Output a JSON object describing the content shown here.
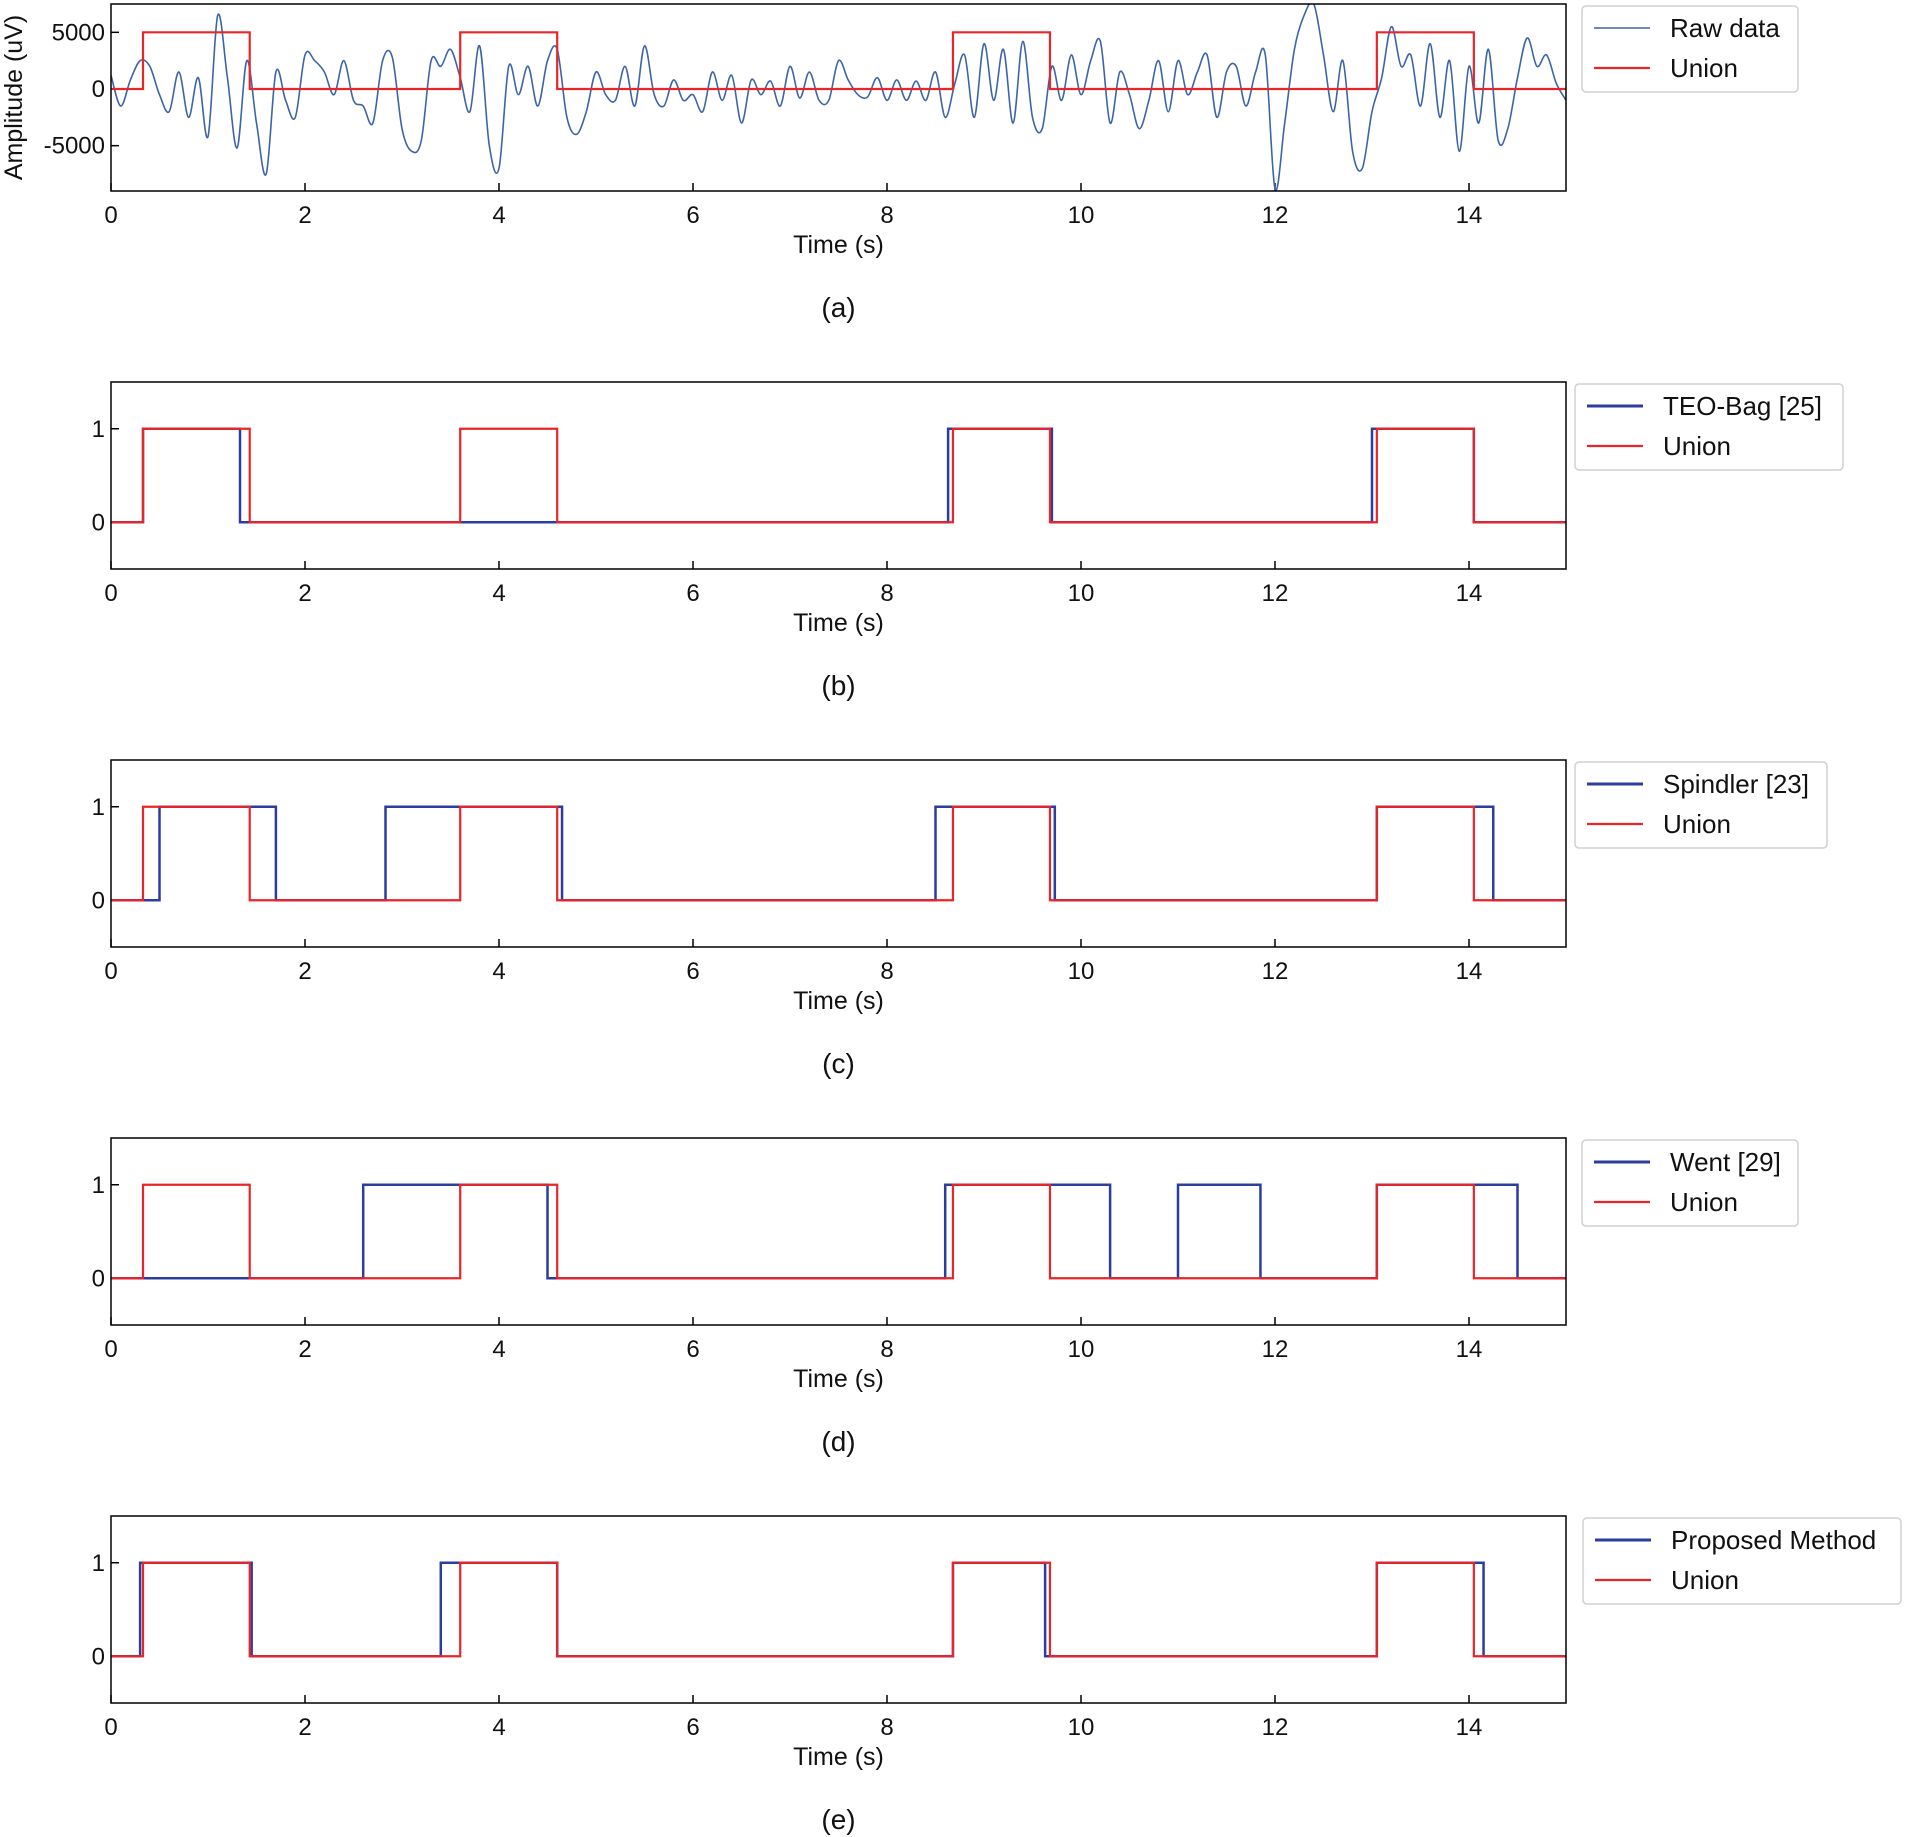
{
  "colors": {
    "raw": "#3b65a6",
    "detector": "#2b3d9e",
    "union": "#e8262a"
  },
  "chart_data": [
    {
      "type": "line",
      "caption": "(a)",
      "xlabel": "Time (s)",
      "ylabel": "Amplitude (uV)",
      "xlim": [
        0,
        15
      ],
      "ylim": [
        -9000,
        7500
      ],
      "xticks": [
        0,
        2,
        4,
        6,
        8,
        10,
        12,
        14
      ],
      "yticks": [
        5000,
        0,
        -5000
      ],
      "grid": false,
      "legend_placement": "outside-right",
      "raw_series": {
        "name": "Raw data",
        "x_start": 0,
        "x_step": 0.1,
        "values": [
          1200,
          -1500,
          800,
          2500,
          2000,
          -500,
          -2000,
          1500,
          -2500,
          1000,
          -4200,
          6500,
          1000,
          -5200,
          2500,
          -3000,
          -7500,
          1500,
          -1000,
          -2500,
          3000,
          2500,
          1500,
          -500,
          2500,
          -1000,
          -1500,
          -3000,
          2500,
          2800,
          -3500,
          -5500,
          -4500,
          2500,
          2000,
          3500,
          1000,
          -2000,
          3800,
          -5000,
          -7000,
          2000,
          -500,
          2000,
          -1500,
          2500,
          3500,
          -2500,
          -4000,
          -2000,
          1500,
          -500,
          -1000,
          2000,
          -1500,
          3800,
          -500,
          -1500,
          800,
          -1000,
          -500,
          -2000,
          1500,
          -1000,
          1200,
          -3000,
          800,
          -500,
          700,
          -1500,
          2000,
          -800,
          1500,
          -1000,
          -1000,
          2500,
          800,
          -500,
          -700,
          1000,
          -1000,
          800,
          -1000,
          700,
          -1000,
          1500,
          -2500,
          500,
          3000,
          -2500,
          4000,
          -1000,
          3500,
          -3000,
          4200,
          -2500,
          -3500,
          2000,
          -1000,
          3000,
          -500,
          2500,
          4200,
          -3000,
          1500,
          -500,
          -3500,
          -1000,
          2500,
          -2000,
          2500,
          -500,
          1500,
          3000,
          -2500,
          1500,
          2000,
          -1500,
          1500,
          3000,
          -8800,
          -3000,
          3500,
          6500,
          7500,
          3000,
          -2000,
          2500,
          -5500,
          -7000,
          -2000,
          1000,
          5500,
          2000,
          3000,
          -1500,
          4000,
          -2500,
          2500,
          -5500,
          2000,
          -3000,
          3500,
          -4500,
          -3500,
          1000,
          4500,
          2000,
          3000,
          500,
          -1000
        ]
      },
      "union_series": {
        "name": "Union",
        "high": 5000,
        "intervals": [
          [
            0.33,
            1.43
          ],
          [
            3.6,
            4.6
          ],
          [
            8.68,
            9.68
          ],
          [
            13.05,
            14.05
          ]
        ]
      }
    },
    {
      "type": "line",
      "caption": "(b)",
      "xlabel": "Time (s)",
      "xlim": [
        0,
        15
      ],
      "ylim": [
        -0.5,
        1.5
      ],
      "xticks": [
        0,
        2,
        4,
        6,
        8,
        10,
        12,
        14
      ],
      "yticks": [
        1,
        0
      ],
      "grid": false,
      "legend_placement": "outside-right",
      "detector_series": {
        "name": "TEO-Bag [25]",
        "intervals": [
          [
            0.33,
            1.33
          ],
          [
            8.63,
            9.7
          ],
          [
            13.0,
            14.05
          ]
        ]
      },
      "union_series": {
        "name": "Union",
        "intervals": [
          [
            0.33,
            1.43
          ],
          [
            3.6,
            4.6
          ],
          [
            8.68,
            9.68
          ],
          [
            13.05,
            14.05
          ]
        ]
      }
    },
    {
      "type": "line",
      "caption": "(c)",
      "xlabel": "Time (s)",
      "xlim": [
        0,
        15
      ],
      "ylim": [
        -0.5,
        1.5
      ],
      "xticks": [
        0,
        2,
        4,
        6,
        8,
        10,
        12,
        14
      ],
      "yticks": [
        1,
        0
      ],
      "grid": false,
      "legend_placement": "outside-right",
      "detector_series": {
        "name": "Spindler [23]",
        "intervals": [
          [
            0.5,
            1.7
          ],
          [
            2.83,
            4.65
          ],
          [
            8.5,
            9.73
          ],
          [
            13.05,
            14.25
          ]
        ]
      },
      "union_series": {
        "name": "Union",
        "intervals": [
          [
            0.33,
            1.43
          ],
          [
            3.6,
            4.6
          ],
          [
            8.68,
            9.68
          ],
          [
            13.05,
            14.05
          ]
        ]
      }
    },
    {
      "type": "line",
      "caption": "(d)",
      "xlabel": "Time (s)",
      "xlim": [
        0,
        15
      ],
      "ylim": [
        -0.5,
        1.5
      ],
      "xticks": [
        0,
        2,
        4,
        6,
        8,
        10,
        12,
        14
      ],
      "yticks": [
        1,
        0
      ],
      "grid": false,
      "legend_placement": "outside-right",
      "detector_series": {
        "name": "Went [29]",
        "intervals": [
          [
            2.6,
            4.5
          ],
          [
            8.6,
            10.3
          ],
          [
            11.0,
            11.85
          ],
          [
            13.05,
            14.5
          ]
        ]
      },
      "union_series": {
        "name": "Union",
        "intervals": [
          [
            0.33,
            1.43
          ],
          [
            3.6,
            4.6
          ],
          [
            8.68,
            9.68
          ],
          [
            13.05,
            14.05
          ]
        ]
      }
    },
    {
      "type": "line",
      "caption": "(e)",
      "xlabel": "Time (s)",
      "xlim": [
        0,
        15
      ],
      "ylim": [
        -0.5,
        1.5
      ],
      "xticks": [
        0,
        2,
        4,
        6,
        8,
        10,
        12,
        14
      ],
      "yticks": [
        1,
        0
      ],
      "grid": false,
      "legend_placement": "outside-right",
      "detector_series": {
        "name": "Proposed Method",
        "intervals": [
          [
            0.3,
            1.45
          ],
          [
            3.4,
            4.6
          ],
          [
            8.68,
            9.63
          ],
          [
            13.05,
            14.15
          ]
        ]
      },
      "union_series": {
        "name": "Union",
        "intervals": [
          [
            0.33,
            1.43
          ],
          [
            3.6,
            4.6
          ],
          [
            8.68,
            9.68
          ],
          [
            13.05,
            14.05
          ]
        ]
      }
    }
  ]
}
